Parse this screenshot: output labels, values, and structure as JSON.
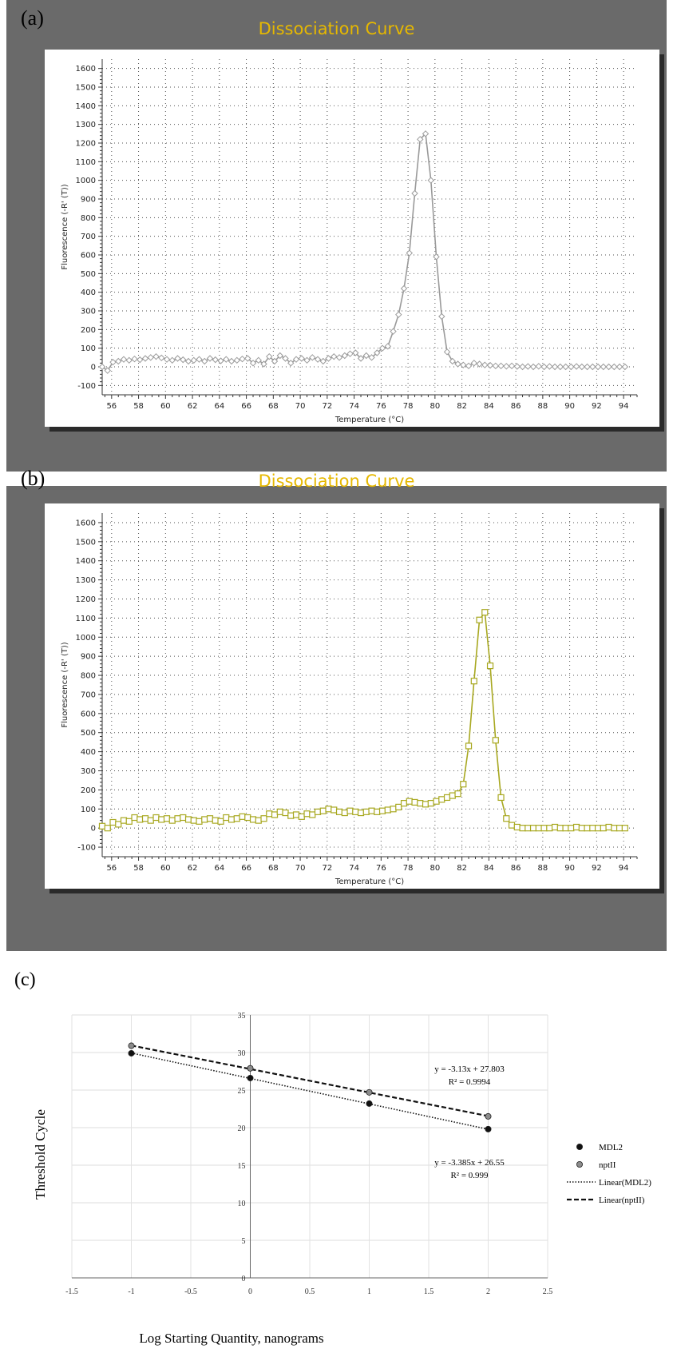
{
  "panels": {
    "a": {
      "label": "(a)"
    },
    "b": {
      "label": "(b)"
    },
    "c": {
      "label": "(c)"
    }
  },
  "chart_data": [
    {
      "id": "a",
      "type": "line",
      "title": "Dissociation Curve",
      "xlabel": "Temperature (°C)",
      "ylabel": "Fluorescence (-R' (T))",
      "xlim": [
        55.3,
        95
      ],
      "ylim": [
        -150,
        1650
      ],
      "xticks": [
        56,
        58,
        60,
        62,
        64,
        66,
        68,
        70,
        72,
        74,
        76,
        78,
        80,
        82,
        84,
        86,
        88,
        90,
        92,
        94
      ],
      "yticks": [
        -100,
        0,
        100,
        200,
        300,
        400,
        500,
        600,
        700,
        800,
        900,
        1000,
        1100,
        1200,
        1300,
        1400,
        1500,
        1600
      ],
      "grid": true,
      "marker": "diamond",
      "color": "#9a9a9a",
      "series": [
        {
          "x": [
            55.3,
            55.7,
            56.1,
            56.5,
            56.9,
            57.3,
            57.7,
            58.1,
            58.5,
            58.9,
            59.3,
            59.7,
            60.1,
            60.5,
            60.9,
            61.3,
            61.7,
            62.1,
            62.5,
            62.9,
            63.3,
            63.7,
            64.1,
            64.5,
            64.9,
            65.3,
            65.7,
            66.1,
            66.5,
            66.9,
            67.3,
            67.7,
            68.1,
            68.5,
            68.9,
            69.3,
            69.7,
            70.1,
            70.5,
            70.9,
            71.3,
            71.7,
            72.1,
            72.5,
            72.9,
            73.3,
            73.7,
            74.1,
            74.5,
            74.9,
            75.3,
            75.7,
            76.1,
            76.5,
            76.9,
            77.3,
            77.7,
            78.1,
            78.5,
            78.9,
            79.3,
            79.7,
            80.1,
            80.5,
            80.9,
            81.3,
            81.7,
            82.1,
            82.5,
            82.9,
            83.3,
            83.7,
            84.1,
            84.5,
            84.9,
            85.3,
            85.7,
            86.1,
            86.5,
            86.9,
            87.3,
            87.7,
            88.1,
            88.5,
            88.9,
            89.3,
            89.7,
            90.1,
            90.5,
            90.9,
            91.3,
            91.7,
            92.1,
            92.5,
            92.9,
            93.3,
            93.7,
            94.1
          ],
          "y": [
            0,
            -20,
            25,
            30,
            40,
            35,
            42,
            38,
            45,
            50,
            55,
            48,
            40,
            35,
            45,
            38,
            30,
            35,
            40,
            30,
            45,
            38,
            32,
            40,
            30,
            35,
            42,
            45,
            20,
            35,
            15,
            55,
            30,
            60,
            45,
            20,
            40,
            45,
            35,
            50,
            40,
            30,
            45,
            55,
            50,
            60,
            70,
            75,
            45,
            60,
            50,
            75,
            100,
            110,
            190,
            280,
            420,
            610,
            930,
            1220,
            1250,
            1000,
            590,
            270,
            80,
            30,
            15,
            10,
            5,
            20,
            15,
            10,
            8,
            5,
            5,
            3,
            5,
            2,
            0,
            2,
            0,
            3,
            0,
            2,
            0,
            0,
            0,
            0,
            2,
            0,
            0,
            0,
            0,
            0,
            0,
            0,
            0,
            0
          ]
        }
      ]
    },
    {
      "id": "b",
      "type": "line",
      "title": "Dissociation Curve",
      "xlabel": "Temperature (°C)",
      "ylabel": "Fluorescence (-R' (T))",
      "xlim": [
        55.3,
        95
      ],
      "ylim": [
        -150,
        1650
      ],
      "xticks": [
        56,
        58,
        60,
        62,
        64,
        66,
        68,
        70,
        72,
        74,
        76,
        78,
        80,
        82,
        84,
        86,
        88,
        90,
        92,
        94
      ],
      "yticks": [
        -100,
        0,
        100,
        200,
        300,
        400,
        500,
        600,
        700,
        800,
        900,
        1000,
        1100,
        1200,
        1300,
        1400,
        1500,
        1600
      ],
      "grid": true,
      "marker": "square",
      "color": "#a8a820",
      "series": [
        {
          "x": [
            55.3,
            55.7,
            56.1,
            56.5,
            56.9,
            57.3,
            57.7,
            58.1,
            58.5,
            58.9,
            59.3,
            59.7,
            60.1,
            60.5,
            60.9,
            61.3,
            61.7,
            62.1,
            62.5,
            62.9,
            63.3,
            63.7,
            64.1,
            64.5,
            64.9,
            65.3,
            65.7,
            66.1,
            66.5,
            66.9,
            67.3,
            67.7,
            68.1,
            68.5,
            68.9,
            69.3,
            69.7,
            70.1,
            70.5,
            70.9,
            71.3,
            71.7,
            72.1,
            72.5,
            72.9,
            73.3,
            73.7,
            74.1,
            74.5,
            74.9,
            75.3,
            75.7,
            76.1,
            76.5,
            76.9,
            77.3,
            77.7,
            78.1,
            78.5,
            78.9,
            79.3,
            79.7,
            80.1,
            80.5,
            80.9,
            81.3,
            81.7,
            82.1,
            82.5,
            82.9,
            83.3,
            83.7,
            84.1,
            84.5,
            84.9,
            85.3,
            85.7,
            86.1,
            86.5,
            86.9,
            87.3,
            87.7,
            88.1,
            88.5,
            88.9,
            89.3,
            89.7,
            90.1,
            90.5,
            90.9,
            91.3,
            91.7,
            92.1,
            92.5,
            92.9,
            93.3,
            93.7,
            94.1
          ],
          "y": [
            10,
            0,
            30,
            20,
            40,
            35,
            55,
            45,
            50,
            40,
            55,
            45,
            50,
            40,
            50,
            55,
            45,
            40,
            35,
            45,
            50,
            40,
            35,
            55,
            45,
            50,
            60,
            55,
            45,
            40,
            50,
            75,
            70,
            85,
            80,
            65,
            70,
            60,
            75,
            70,
            85,
            90,
            100,
            95,
            85,
            80,
            90,
            85,
            80,
            85,
            90,
            85,
            90,
            95,
            100,
            110,
            130,
            140,
            135,
            130,
            125,
            130,
            140,
            150,
            160,
            170,
            180,
            230,
            430,
            770,
            1090,
            1130,
            850,
            460,
            160,
            50,
            15,
            5,
            0,
            0,
            0,
            0,
            0,
            0,
            5,
            0,
            0,
            0,
            5,
            0,
            0,
            0,
            0,
            0,
            5,
            0,
            0,
            0
          ]
        }
      ]
    },
    {
      "id": "c",
      "type": "scatter",
      "xlabel": "Log Starting Quantity, nanograms",
      "ylabel": "Threshold Cycle",
      "xlim": [
        -1.5,
        2.5
      ],
      "ylim": [
        0,
        35
      ],
      "xticks": [
        "-1.5",
        "-1",
        "-0.5",
        "0",
        "0.5",
        "1",
        "1.5",
        "2",
        "2.5"
      ],
      "yticks": [
        "0",
        "5",
        "10",
        "15",
        "20",
        "25",
        "30",
        "35"
      ],
      "grid": true,
      "legend_position": "right",
      "series": [
        {
          "name": "MDL2",
          "color": "#111111",
          "x": [
            -1,
            0,
            1,
            2
          ],
          "y": [
            29.9,
            26.6,
            23.2,
            19.8
          ]
        },
        {
          "name": "nptII",
          "color": "#8c8c8c",
          "x": [
            -1,
            0,
            1,
            2
          ],
          "y": [
            30.9,
            27.9,
            24.7,
            21.5
          ]
        }
      ],
      "trendlines": [
        {
          "name": "Linear(MDL2)",
          "style": "dotted",
          "slope": -3.385,
          "intercept": 26.55,
          "equation": "y = -3.385x + 26.55",
          "r2": "R² = 0.999"
        },
        {
          "name": "Linear(nptII)",
          "style": "dashed",
          "slope": -3.13,
          "intercept": 27.803,
          "equation": "y = -3.13x + 27.803",
          "r2": "R² = 0.9994"
        }
      ]
    }
  ]
}
